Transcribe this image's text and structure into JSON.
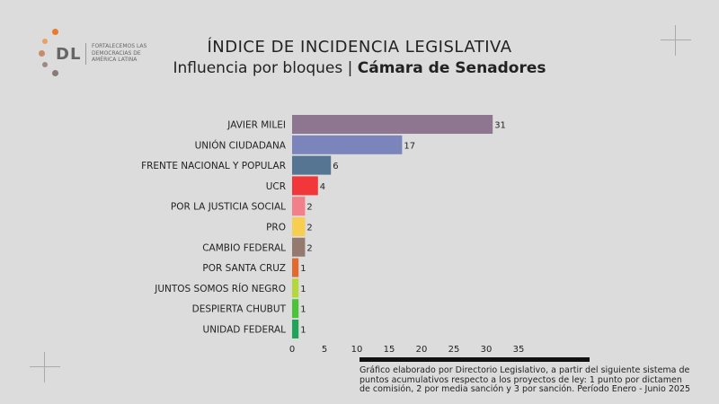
{
  "logo": {
    "mark": "DL",
    "tagline": "FORTALECEMOS LAS DEMOCRACIAS DE AMÉRICA LATINA"
  },
  "header": {
    "title": "ÍNDICE DE INCIDENCIA LEGISLATIVA",
    "subtitle_prefix": "Influencia por bloques | ",
    "subtitle_bold": "Cámara de Senadores"
  },
  "chart_data": {
    "type": "bar",
    "orientation": "horizontal",
    "categories": [
      "JAVIER MILEI",
      "UNIÓN CIUDADANA",
      "FRENTE NACIONAL Y POPULAR",
      "UCR",
      "POR LA JUSTICIA SOCIAL",
      "PRO",
      "CAMBIO FEDERAL",
      "POR SANTA CRUZ",
      "JUNTOS SOMOS RÍO NEGRO",
      "DESPIERTA CHUBUT",
      "UNIDAD FEDERAL"
    ],
    "values": [
      31,
      17,
      6,
      4,
      2,
      2,
      2,
      1,
      1,
      1,
      1
    ],
    "colors": [
      "#8e7690",
      "#7b85bb",
      "#557592",
      "#f2373a",
      "#f2808a",
      "#f7cd52",
      "#947a6e",
      "#e06a30",
      "#b4d83c",
      "#4cc23a",
      "#22a35a"
    ],
    "xlim": [
      0,
      35
    ],
    "xticks": [
      0,
      5,
      10,
      15,
      20,
      25,
      30,
      35
    ],
    "title": "ÍNDICE DE INCIDENCIA LEGISLATIVA",
    "xlabel": "",
    "ylabel": ""
  },
  "footnote": "Gráfico elaborado por Directorio Legislativo, a partir del siguiente sistema de puntos acumulativos respecto a los proyectos de ley: 1 punto por dictamen de comisión, 2 por media sanción y 3 por sanción. Período Enero - Junio 2025"
}
